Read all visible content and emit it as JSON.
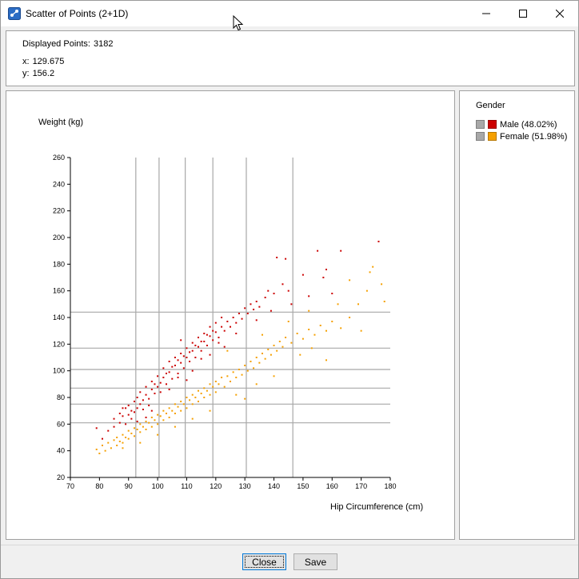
{
  "window": {
    "title": "Scatter of Points (2+1D)",
    "icons": [
      "scatter-app-icon",
      "minimize-icon",
      "maximize-icon",
      "close-icon"
    ]
  },
  "info": {
    "displayed_label": "Displayed Points:",
    "displayed_value": "3182",
    "x_label": "x:",
    "x_value": "129.675",
    "y_label": "y:",
    "y_value": "156.2"
  },
  "legend": {
    "title": "Gender",
    "items": [
      {
        "label": "Male (48.02%)",
        "color": "#cc0000"
      },
      {
        "label": "Female (51.98%)",
        "color": "#f5a000"
      }
    ]
  },
  "buttons": {
    "close_label": "Close",
    "save_label": "Save"
  },
  "chart_data": {
    "type": "scatter",
    "xlabel": "Hip Circumference (cm)",
    "ylabel": "Weight (kg)",
    "xlim": [
      70,
      180
    ],
    "ylim": [
      20,
      260
    ],
    "x_ticks": [
      70,
      80,
      90,
      100,
      110,
      120,
      130,
      140,
      150,
      160,
      170,
      180
    ],
    "y_ticks": [
      20,
      40,
      60,
      80,
      100,
      120,
      140,
      160,
      180,
      200,
      220,
      240,
      260
    ],
    "v_gridlines": [
      92.5,
      100.5,
      109.5,
      119,
      130.5,
      146.5
    ],
    "h_gridlines": [
      61,
      75,
      87,
      101,
      117,
      144
    ],
    "series": [
      {
        "name": "Male (48.02%)",
        "color": "#cc0000",
        "points": [
          [
            79,
            57
          ],
          [
            81,
            49
          ],
          [
            83,
            55
          ],
          [
            85,
            64
          ],
          [
            85,
            58
          ],
          [
            87,
            61
          ],
          [
            87,
            68
          ],
          [
            88,
            66
          ],
          [
            89,
            60
          ],
          [
            89,
            72
          ],
          [
            90,
            67
          ],
          [
            90,
            74
          ],
          [
            91,
            70
          ],
          [
            91,
            64
          ],
          [
            92,
            77
          ],
          [
            92,
            69
          ],
          [
            93,
            72
          ],
          [
            93,
            80
          ],
          [
            94,
            75
          ],
          [
            94,
            84
          ],
          [
            95,
            78
          ],
          [
            95,
            71
          ],
          [
            96,
            82
          ],
          [
            96,
            88
          ],
          [
            97,
            79
          ],
          [
            97,
            74
          ],
          [
            98,
            86
          ],
          [
            98,
            92
          ],
          [
            99,
            83
          ],
          [
            99,
            90
          ],
          [
            100,
            88
          ],
          [
            100,
            96
          ],
          [
            101,
            91
          ],
          [
            101,
            84
          ],
          [
            102,
            95
          ],
          [
            102,
            102
          ],
          [
            103,
            90
          ],
          [
            103,
            98
          ],
          [
            104,
            99
          ],
          [
            104,
            107
          ],
          [
            105,
            94
          ],
          [
            105,
            103
          ],
          [
            106,
            104
          ],
          [
            106,
            110
          ],
          [
            107,
            98
          ],
          [
            107,
            108
          ],
          [
            108,
            106
          ],
          [
            108,
            113
          ],
          [
            109,
            102
          ],
          [
            109,
            111
          ],
          [
            110,
            110
          ],
          [
            110,
            117
          ],
          [
            111,
            107
          ],
          [
            111,
            114
          ],
          [
            112,
            115
          ],
          [
            112,
            121
          ],
          [
            113,
            110
          ],
          [
            113,
            119
          ],
          [
            114,
            118
          ],
          [
            114,
            125
          ],
          [
            115,
            115
          ],
          [
            115,
            122
          ],
          [
            116,
            122
          ],
          [
            116,
            128
          ],
          [
            117,
            119
          ],
          [
            117,
            127
          ],
          [
            118,
            126
          ],
          [
            118,
            133
          ],
          [
            119,
            123
          ],
          [
            119,
            130
          ],
          [
            120,
            129
          ],
          [
            120,
            136
          ],
          [
            121,
            125
          ],
          [
            122,
            133
          ],
          [
            122,
            140
          ],
          [
            123,
            130
          ],
          [
            124,
            137
          ],
          [
            125,
            133
          ],
          [
            126,
            140
          ],
          [
            127,
            136
          ],
          [
            128,
            143
          ],
          [
            129,
            139
          ],
          [
            130,
            147
          ],
          [
            131,
            143
          ],
          [
            132,
            150
          ],
          [
            133,
            146
          ],
          [
            134,
            152
          ],
          [
            135,
            148
          ],
          [
            137,
            155
          ],
          [
            138,
            160
          ],
          [
            140,
            158
          ],
          [
            143,
            165
          ],
          [
            141,
            185
          ],
          [
            144,
            184
          ],
          [
            146,
            150
          ],
          [
            150,
            172
          ],
          [
            152,
            156
          ],
          [
            155,
            190
          ],
          [
            157,
            170
          ],
          [
            158,
            176
          ],
          [
            160,
            158
          ],
          [
            163,
            190
          ],
          [
            176,
            197
          ],
          [
            104,
            86
          ],
          [
            98,
            70
          ],
          [
            93,
            62
          ],
          [
            107,
            95
          ],
          [
            112,
            100
          ],
          [
            118,
            112
          ],
          [
            123,
            118
          ],
          [
            88,
            72
          ],
          [
            96,
            65
          ],
          [
            110,
            93
          ],
          [
            121,
            121
          ],
          [
            127,
            128
          ],
          [
            134,
            138
          ],
          [
            139,
            145
          ],
          [
            145,
            160
          ],
          [
            108,
            123
          ],
          [
            115,
            109
          ]
        ]
      },
      {
        "name": "Female (51.98%)",
        "color": "#f5a000",
        "points": [
          [
            79,
            41
          ],
          [
            80,
            38
          ],
          [
            81,
            44
          ],
          [
            82,
            40
          ],
          [
            83,
            46
          ],
          [
            84,
            42
          ],
          [
            85,
            48
          ],
          [
            86,
            44
          ],
          [
            86,
            50
          ],
          [
            87,
            47
          ],
          [
            88,
            52
          ],
          [
            88,
            46
          ],
          [
            89,
            50
          ],
          [
            90,
            55
          ],
          [
            90,
            49
          ],
          [
            91,
            53
          ],
          [
            92,
            57
          ],
          [
            92,
            51
          ],
          [
            93,
            56
          ],
          [
            94,
            60
          ],
          [
            94,
            54
          ],
          [
            95,
            58
          ],
          [
            96,
            62
          ],
          [
            96,
            56
          ],
          [
            97,
            61
          ],
          [
            98,
            65
          ],
          [
            98,
            58
          ],
          [
            99,
            63
          ],
          [
            100,
            67
          ],
          [
            100,
            60
          ],
          [
            101,
            66
          ],
          [
            102,
            70
          ],
          [
            102,
            63
          ],
          [
            103,
            68
          ],
          [
            104,
            72
          ],
          [
            104,
            65
          ],
          [
            105,
            70
          ],
          [
            106,
            75
          ],
          [
            106,
            68
          ],
          [
            107,
            73
          ],
          [
            108,
            77
          ],
          [
            108,
            70
          ],
          [
            109,
            75
          ],
          [
            110,
            80
          ],
          [
            110,
            72
          ],
          [
            111,
            78
          ],
          [
            112,
            82
          ],
          [
            112,
            75
          ],
          [
            113,
            80
          ],
          [
            114,
            85
          ],
          [
            114,
            77
          ],
          [
            115,
            83
          ],
          [
            116,
            87
          ],
          [
            116,
            80
          ],
          [
            117,
            85
          ],
          [
            118,
            90
          ],
          [
            118,
            82
          ],
          [
            119,
            88
          ],
          [
            120,
            92
          ],
          [
            120,
            84
          ],
          [
            121,
            90
          ],
          [
            122,
            95
          ],
          [
            123,
            88
          ],
          [
            124,
            96
          ],
          [
            125,
            92
          ],
          [
            126,
            99
          ],
          [
            127,
            95
          ],
          [
            128,
            101
          ],
          [
            129,
            97
          ],
          [
            130,
            104
          ],
          [
            131,
            100
          ],
          [
            132,
            107
          ],
          [
            133,
            102
          ],
          [
            134,
            110
          ],
          [
            135,
            106
          ],
          [
            136,
            113
          ],
          [
            137,
            109
          ],
          [
            138,
            116
          ],
          [
            139,
            112
          ],
          [
            140,
            119
          ],
          [
            141,
            115
          ],
          [
            142,
            122
          ],
          [
            143,
            118
          ],
          [
            144,
            125
          ],
          [
            146,
            121
          ],
          [
            148,
            128
          ],
          [
            150,
            124
          ],
          [
            152,
            131
          ],
          [
            154,
            127
          ],
          [
            156,
            134
          ],
          [
            158,
            130
          ],
          [
            160,
            137
          ],
          [
            163,
            132
          ],
          [
            166,
            140
          ],
          [
            169,
            150
          ],
          [
            172,
            160
          ],
          [
            174,
            178
          ],
          [
            177,
            165
          ],
          [
            178,
            152
          ],
          [
            170,
            130
          ],
          [
            153,
            117
          ],
          [
            158,
            108
          ],
          [
            149,
            112
          ],
          [
            130,
            79
          ],
          [
            140,
            96
          ],
          [
            134,
            90
          ],
          [
            127,
            82
          ],
          [
            118,
            70
          ],
          [
            112,
            64
          ],
          [
            106,
            58
          ],
          [
            100,
            52
          ],
          [
            94,
            46
          ],
          [
            88,
            42
          ],
          [
            124,
            115
          ],
          [
            136,
            127
          ],
          [
            145,
            137
          ],
          [
            152,
            145
          ],
          [
            162,
            150
          ],
          [
            166,
            168
          ],
          [
            173,
            174
          ]
        ]
      }
    ]
  }
}
